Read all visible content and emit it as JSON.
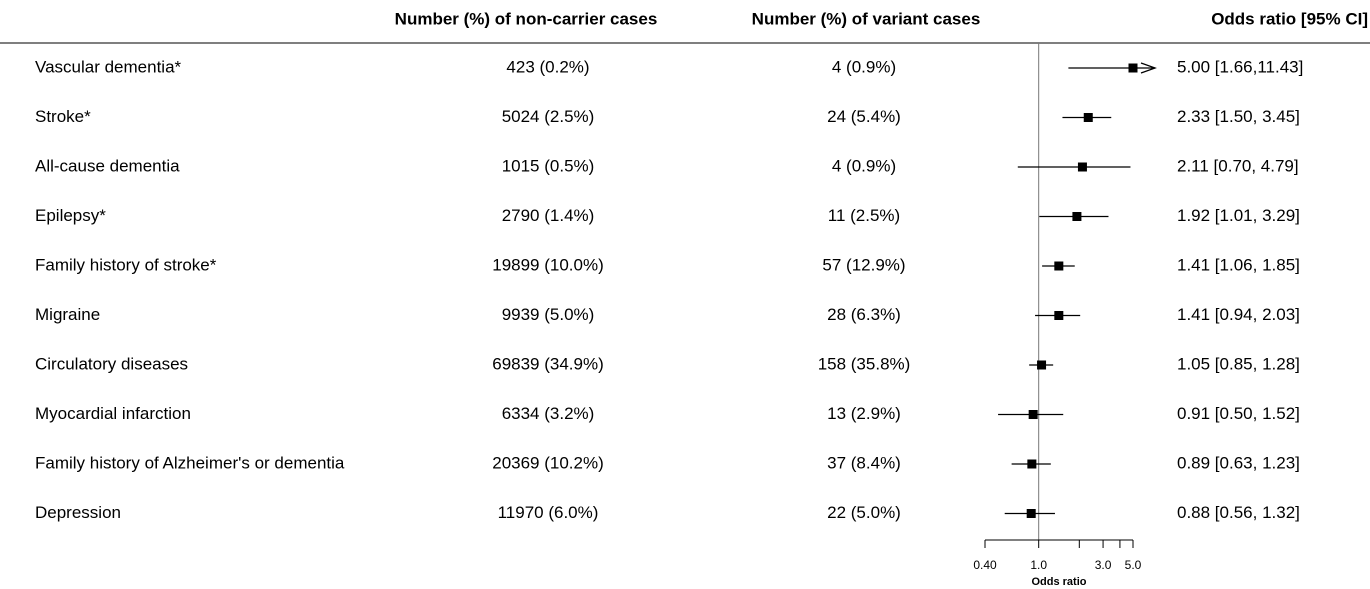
{
  "chart_data": {
    "type": "forest",
    "columns": [
      "Number (%) of non-carrier cases",
      "Number (%) of variant cases",
      "Odds ratio [95% CI]"
    ],
    "categories": [
      "Vascular dementia*",
      "Stroke*",
      "All-cause dementia",
      "Epilepsy*",
      "Family history of stroke*",
      "Migraine",
      "Circulatory diseases",
      "Myocardial infarction",
      "Family history of Alzheimer's or dementia",
      "Depression"
    ],
    "non_carrier": [
      "423 (0.2%)",
      "5024 (2.5%)",
      "1015 (0.5%)",
      "2790 (1.4%)",
      "19899 (10.0%)",
      "9939 (5.0%)",
      "69839 (34.9%)",
      "6334 (3.2%)",
      "20369 (10.2%)",
      "11970 (6.0%)"
    ],
    "variant": [
      "4 (0.9%)",
      "24 (5.4%)",
      "4 (0.9%)",
      "11 (2.5%)",
      "57 (12.9%)",
      "28 (6.3%)",
      "158 (35.8%)",
      "13 (2.9%)",
      "37 (8.4%)",
      "22 (5.0%)"
    ],
    "values": [
      5.0,
      2.33,
      2.11,
      1.92,
      1.41,
      1.41,
      1.05,
      0.91,
      0.89,
      0.88
    ],
    "lower": [
      1.66,
      1.5,
      0.7,
      1.01,
      1.06,
      0.94,
      0.85,
      0.5,
      0.63,
      0.56
    ],
    "upper": [
      11.43,
      3.45,
      4.79,
      3.29,
      1.85,
      2.03,
      1.28,
      1.52,
      1.23,
      1.32
    ],
    "value_labels": [
      "5.00 [1.66,11.43]",
      "2.33 [1.50, 3.45]",
      "2.11 [0.70, 4.79]",
      "1.92 [1.01, 3.29]",
      "1.41 [1.06, 1.85]",
      "1.41 [0.94, 2.03]",
      "1.05 [0.85, 1.28]",
      "0.91 [0.50, 1.52]",
      "0.89 [0.63, 1.23]",
      "0.88 [0.56, 1.32]"
    ],
    "xlabel": "Odds ratio",
    "log_x": true,
    "xlim": [
      0.4,
      5
    ],
    "xticks": [
      {
        "value": 0.4,
        "label": "0.40"
      },
      {
        "value": 1,
        "label": "1.0"
      },
      {
        "value": 3,
        "label": "3.0"
      },
      {
        "value": 5,
        "label": "5.0"
      }
    ],
    "xminor_ticks": [
      2,
      4
    ],
    "reference": 1,
    "color": "#000000"
  }
}
